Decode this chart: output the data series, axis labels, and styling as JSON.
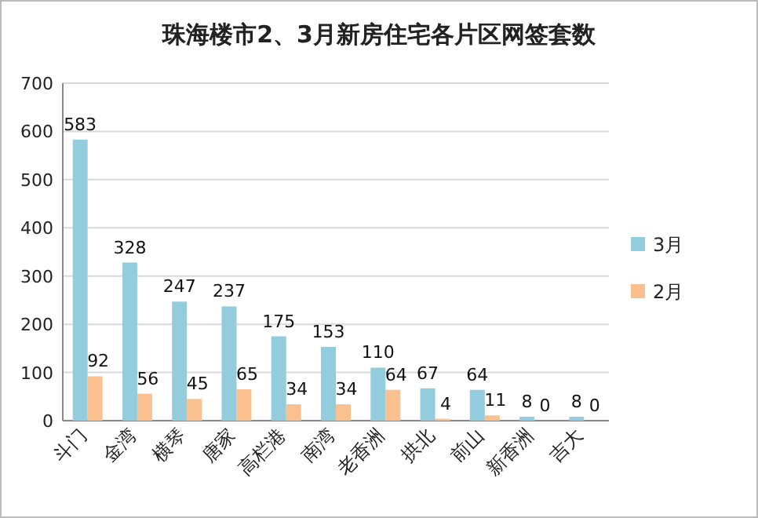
{
  "chart_data": {
    "type": "bar",
    "title": "珠海楼市2、3月新房住宅各片区网签套数",
    "categories": [
      "斗门",
      "金湾",
      "横琴",
      "唐家",
      "高栏港",
      "南湾",
      "老香洲",
      "拱北",
      "前山",
      "新香洲",
      "吉大"
    ],
    "series": [
      {
        "name": "3月",
        "color": "#93cddd",
        "values": [
          583,
          328,
          247,
          237,
          175,
          153,
          110,
          67,
          64,
          8,
          8
        ]
      },
      {
        "name": "2月",
        "color": "#fac090",
        "values": [
          92,
          56,
          45,
          65,
          34,
          34,
          64,
          4,
          11,
          0,
          0
        ]
      }
    ],
    "ylim": [
      0,
      700
    ],
    "yticks": [
      0,
      100,
      200,
      300,
      400,
      500,
      600,
      700
    ],
    "grid": "y",
    "legend": "right",
    "data_labels": true
  }
}
